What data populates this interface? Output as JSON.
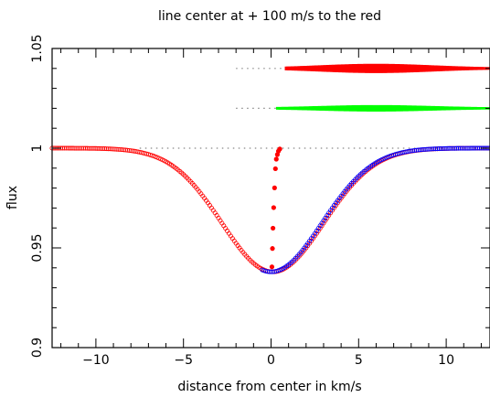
{
  "chart_data": {
    "type": "scatter",
    "title": "line center at + 100 m/s to the red",
    "xlabel": "distance from center in km/s",
    "ylabel": "flux",
    "xlim": [
      -12.5,
      12.5
    ],
    "ylim": [
      0.9,
      1.05
    ],
    "x_ticks": [
      -10,
      -5,
      0,
      5,
      10
    ],
    "x_tick_labels": [
      "−10",
      "−5",
      "0",
      "5",
      "10"
    ],
    "y_ticks": [
      0.9,
      0.95,
      1.0,
      1.05
    ],
    "y_tick_labels": [
      "0.9",
      "0.95",
      "1",
      "1.05"
    ],
    "grid": false,
    "legend": "none",
    "series": [
      {
        "marker": "open-circle",
        "color": "#ff0000",
        "profile": {
          "baseline": 1.0,
          "depth": 0.062,
          "center": 0.1,
          "sigma": 2.9
        },
        "x_range": [
          -12.5,
          12.5
        ]
      },
      {
        "marker": "open-circle",
        "color": "#0000ff",
        "profile": {
          "baseline": 1.0,
          "depth": 0.062,
          "center": 0.0,
          "sigma": 2.9
        },
        "x_range": [
          -0.5,
          12.5
        ]
      },
      {
        "marker": "filled-dot",
        "color": "#ff0000",
        "points": [
          [
            0.05,
            0.9405
          ],
          [
            0.08,
            0.9497
          ],
          [
            0.11,
            0.9599
          ],
          [
            0.15,
            0.9702
          ],
          [
            0.2,
            0.9801
          ],
          [
            0.25,
            0.9897
          ],
          [
            0.3,
            0.9945
          ],
          [
            0.36,
            0.9968
          ],
          [
            0.42,
            0.9985
          ],
          [
            0.5,
            0.9996
          ]
        ]
      },
      {
        "marker": "dotted-line",
        "color": "#888888",
        "points": [
          [
            -7.5,
            1.0
          ],
          [
            12.5,
            1.0
          ]
        ]
      },
      {
        "marker": "dotted-line",
        "color": "#888888",
        "points": [
          [
            -2.0,
            1.02
          ],
          [
            0.3,
            1.02
          ]
        ]
      },
      {
        "marker": "dotted-line",
        "color": "#888888",
        "points": [
          [
            -2.0,
            1.04
          ],
          [
            0.8,
            1.04
          ]
        ]
      },
      {
        "marker": "band",
        "color": "#00ff00",
        "baseline": 1.02,
        "x_range": [
          0.3,
          12.5
        ],
        "max_half_width": 0.0015,
        "peak_x": 6.0
      },
      {
        "marker": "band",
        "color": "#ff0000",
        "baseline": 1.04,
        "x_range": [
          0.8,
          12.5
        ],
        "max_half_width": 0.0022,
        "peak_x": 6.0
      }
    ]
  }
}
